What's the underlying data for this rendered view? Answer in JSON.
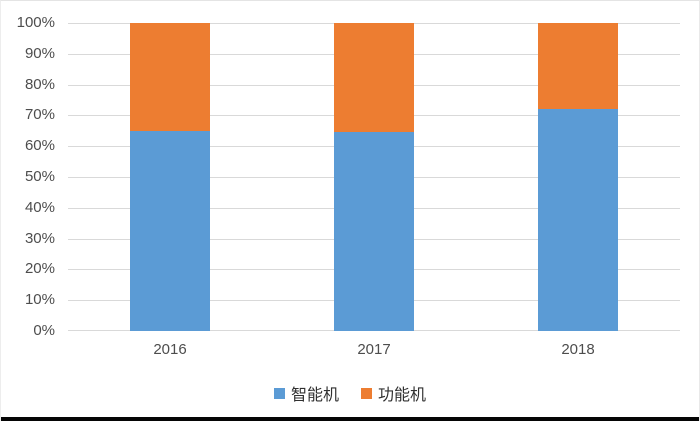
{
  "chart": {
    "background": "#ffffff",
    "grid_color": "#d9d9d9",
    "tick_label_color": "#4d4d4d",
    "legend_label_color": "#303030",
    "bottom_border_color": "#050505"
  },
  "chart_data": {
    "type": "bar",
    "stacked": true,
    "stacked_mode": "percent",
    "title": "",
    "xlabel": "",
    "ylabel": "",
    "categories": [
      "2016",
      "2017",
      "2018"
    ],
    "series": [
      {
        "name": "智能机",
        "color": "#5b9bd5",
        "values": [
          65,
          64.5,
          72
        ]
      },
      {
        "name": "功能机",
        "color": "#ed7d31",
        "values": [
          35,
          35.5,
          28
        ]
      }
    ],
    "ylim": [
      0,
      100
    ],
    "yticks": [
      "0%",
      "10%",
      "20%",
      "30%",
      "40%",
      "50%",
      "60%",
      "70%",
      "80%",
      "90%",
      "100%"
    ],
    "grid": true,
    "legend_position": "bottom"
  }
}
